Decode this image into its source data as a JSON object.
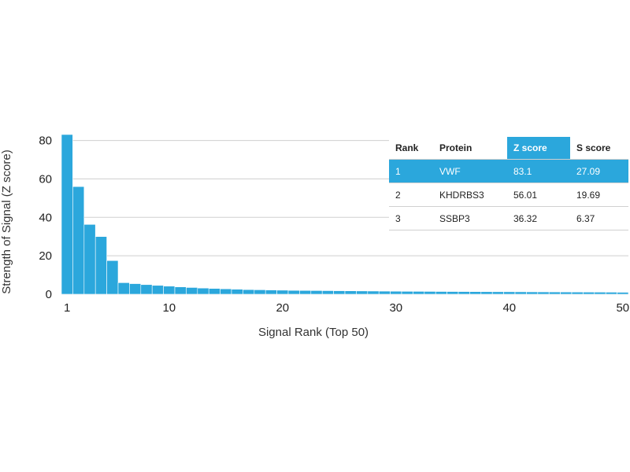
{
  "chart_data": {
    "type": "bar",
    "title": "",
    "xlabel": "Signal Rank (Top 50)",
    "ylabel": "Strength of Signal (Z score)",
    "ylim": [
      0,
      83.1
    ],
    "yticks": [
      0,
      20,
      40,
      60,
      80
    ],
    "xticks": [
      1,
      10,
      20,
      30,
      40,
      50
    ],
    "grid": true,
    "bar_color": "#2ba7dc",
    "ranks": [
      1,
      2,
      3,
      4,
      5,
      6,
      7,
      8,
      9,
      10,
      11,
      12,
      13,
      14,
      15,
      16,
      17,
      18,
      19,
      20,
      21,
      22,
      23,
      24,
      25,
      26,
      27,
      28,
      29,
      30,
      31,
      32,
      33,
      34,
      35,
      36,
      37,
      38,
      39,
      40,
      41,
      42,
      43,
      44,
      45,
      46,
      47,
      48,
      49,
      50
    ],
    "values": [
      83.1,
      56.01,
      36.32,
      30,
      17.5,
      6,
      5.5,
      5,
      4.6,
      4.2,
      3.8,
      3.5,
      3.2,
      3.0,
      2.8,
      2.6,
      2.4,
      2.3,
      2.2,
      2.1,
      2.0,
      1.95,
      1.9,
      1.85,
      1.8,
      1.75,
      1.7,
      1.65,
      1.6,
      1.55,
      1.5,
      1.48,
      1.45,
      1.42,
      1.4,
      1.38,
      1.35,
      1.32,
      1.3,
      1.28,
      1.25,
      1.22,
      1.2,
      1.18,
      1.15,
      1.12,
      1.1,
      1.08,
      1.05,
      1.0
    ]
  },
  "table": {
    "headers": [
      "Rank",
      "Protein",
      "Z score",
      "S score"
    ],
    "rows": [
      {
        "rank": "1",
        "protein": "VWF",
        "z": "83.1",
        "s": "27.09"
      },
      {
        "rank": "2",
        "protein": "KHDRBS3",
        "z": "56.01",
        "s": "19.69"
      },
      {
        "rank": "3",
        "protein": "SSBP3",
        "z": "36.32",
        "s": "6.37"
      }
    ]
  },
  "colors": {
    "accent": "#2ba7dc",
    "grid": "#cfcfcf"
  }
}
